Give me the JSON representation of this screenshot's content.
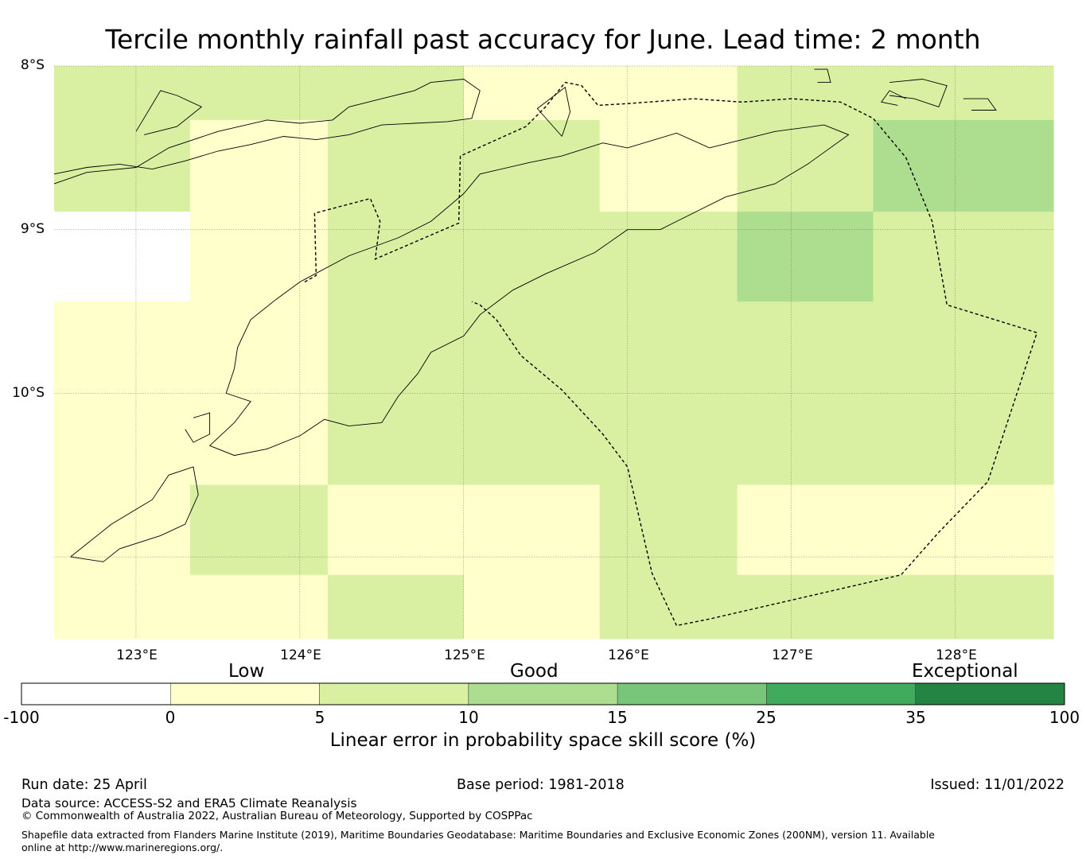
{
  "title": "Tercile monthly rainfall past accuracy for June. Lead time: 2 month",
  "map": {
    "lat_labels": [
      "8°S",
      "9°S",
      "10°S"
    ],
    "lon_labels": [
      "123°E",
      "124°E",
      "125°E",
      "126°E",
      "127°E",
      "128°E"
    ],
    "lat_range": [
      -11.5,
      -8.0
    ],
    "lon_range": [
      122.5,
      128.6
    ],
    "gridlines": true,
    "grid_cells": [
      {
        "lon": [
          122.5,
          123.33
        ],
        "lat": [
          -8.33,
          -8.0
        ],
        "value": 7.5
      },
      {
        "lon": [
          123.33,
          124.17
        ],
        "lat": [
          -8.33,
          -8.0
        ],
        "value": 7.5
      },
      {
        "lon": [
          124.17,
          125.0
        ],
        "lat": [
          -8.33,
          -8.0
        ],
        "value": 7.5
      },
      {
        "lon": [
          125.0,
          125.83
        ],
        "lat": [
          -8.33,
          -8.0
        ],
        "value": 2.5
      },
      {
        "lon": [
          125.83,
          126.67
        ],
        "lat": [
          -8.33,
          -8.0
        ],
        "value": 2.5
      },
      {
        "lon": [
          126.67,
          127.5
        ],
        "lat": [
          -8.33,
          -8.0
        ],
        "value": 7.5
      },
      {
        "lon": [
          127.5,
          128.6
        ],
        "lat": [
          -8.33,
          -8.0
        ],
        "value": 7.5
      },
      {
        "lon": [
          122.5,
          123.33
        ],
        "lat": [
          -8.89,
          -8.33
        ],
        "value": 7.5
      },
      {
        "lon": [
          123.33,
          124.17
        ],
        "lat": [
          -8.89,
          -8.33
        ],
        "value": 2.5
      },
      {
        "lon": [
          124.17,
          125.0
        ],
        "lat": [
          -8.89,
          -8.33
        ],
        "value": 7.5
      },
      {
        "lon": [
          125.0,
          125.83
        ],
        "lat": [
          -8.89,
          -8.33
        ],
        "value": 7.5
      },
      {
        "lon": [
          125.83,
          126.67
        ],
        "lat": [
          -8.89,
          -8.33
        ],
        "value": 2.5
      },
      {
        "lon": [
          126.67,
          127.5
        ],
        "lat": [
          -8.89,
          -8.33
        ],
        "value": 7.5
      },
      {
        "lon": [
          127.5,
          128.6
        ],
        "lat": [
          -8.89,
          -8.33
        ],
        "value": 12.5
      },
      {
        "lon": [
          122.5,
          123.33
        ],
        "lat": [
          -9.44,
          -8.89
        ],
        "value": -50
      },
      {
        "lon": [
          123.33,
          124.17
        ],
        "lat": [
          -9.44,
          -8.89
        ],
        "value": 2.5
      },
      {
        "lon": [
          124.17,
          125.0
        ],
        "lat": [
          -9.44,
          -8.89
        ],
        "value": 7.5
      },
      {
        "lon": [
          125.0,
          125.83
        ],
        "lat": [
          -9.44,
          -8.89
        ],
        "value": 7.5
      },
      {
        "lon": [
          125.83,
          126.67
        ],
        "lat": [
          -9.44,
          -8.89
        ],
        "value": 7.5
      },
      {
        "lon": [
          126.67,
          127.5
        ],
        "lat": [
          -9.44,
          -8.89
        ],
        "value": 12.5
      },
      {
        "lon": [
          127.5,
          128.6
        ],
        "lat": [
          -9.44,
          -8.89
        ],
        "value": 7.5
      },
      {
        "lon": [
          122.5,
          123.33
        ],
        "lat": [
          -10.0,
          -9.44
        ],
        "value": 2.5
      },
      {
        "lon": [
          123.33,
          124.17
        ],
        "lat": [
          -10.0,
          -9.44
        ],
        "value": 2.5
      },
      {
        "lon": [
          124.17,
          125.0
        ],
        "lat": [
          -10.0,
          -9.44
        ],
        "value": 7.5
      },
      {
        "lon": [
          125.0,
          125.83
        ],
        "lat": [
          -10.0,
          -9.44
        ],
        "value": 7.5
      },
      {
        "lon": [
          125.83,
          126.67
        ],
        "lat": [
          -10.0,
          -9.44
        ],
        "value": 7.5
      },
      {
        "lon": [
          126.67,
          127.5
        ],
        "lat": [
          -10.0,
          -9.44
        ],
        "value": 7.5
      },
      {
        "lon": [
          127.5,
          128.6
        ],
        "lat": [
          -10.0,
          -9.44
        ],
        "value": 7.5
      },
      {
        "lon": [
          122.5,
          123.33
        ],
        "lat": [
          -10.56,
          -10.0
        ],
        "value": 2.5
      },
      {
        "lon": [
          123.33,
          124.17
        ],
        "lat": [
          -10.56,
          -10.0
        ],
        "value": 2.5
      },
      {
        "lon": [
          124.17,
          125.0
        ],
        "lat": [
          -10.56,
          -10.0
        ],
        "value": 7.5
      },
      {
        "lon": [
          125.0,
          125.83
        ],
        "lat": [
          -10.56,
          -10.0
        ],
        "value": 7.5
      },
      {
        "lon": [
          125.83,
          126.67
        ],
        "lat": [
          -10.56,
          -10.0
        ],
        "value": 7.5
      },
      {
        "lon": [
          126.67,
          127.5
        ],
        "lat": [
          -10.56,
          -10.0
        ],
        "value": 7.5
      },
      {
        "lon": [
          127.5,
          128.6
        ],
        "lat": [
          -10.56,
          -10.0
        ],
        "value": 7.5
      },
      {
        "lon": [
          122.5,
          123.33
        ],
        "lat": [
          -11.11,
          -10.56
        ],
        "value": 2.5
      },
      {
        "lon": [
          123.33,
          124.17
        ],
        "lat": [
          -11.11,
          -10.56
        ],
        "value": 7.5
      },
      {
        "lon": [
          124.17,
          125.0
        ],
        "lat": [
          -11.11,
          -10.56
        ],
        "value": 2.5
      },
      {
        "lon": [
          125.0,
          125.83
        ],
        "lat": [
          -11.11,
          -10.56
        ],
        "value": 2.5
      },
      {
        "lon": [
          125.83,
          126.67
        ],
        "lat": [
          -11.11,
          -10.56
        ],
        "value": 7.5
      },
      {
        "lon": [
          126.67,
          127.5
        ],
        "lat": [
          -11.11,
          -10.56
        ],
        "value": 2.5
      },
      {
        "lon": [
          127.5,
          128.6
        ],
        "lat": [
          -11.11,
          -10.56
        ],
        "value": 2.5
      },
      {
        "lon": [
          122.5,
          123.33
        ],
        "lat": [
          -11.5,
          -11.11
        ],
        "value": 2.5
      },
      {
        "lon": [
          123.33,
          124.17
        ],
        "lat": [
          -11.5,
          -11.11
        ],
        "value": 2.5
      },
      {
        "lon": [
          124.17,
          125.0
        ],
        "lat": [
          -11.5,
          -11.11
        ],
        "value": 7.5
      },
      {
        "lon": [
          125.0,
          125.83
        ],
        "lat": [
          -11.5,
          -11.11
        ],
        "value": 2.5
      },
      {
        "lon": [
          125.83,
          126.67
        ],
        "lat": [
          -11.5,
          -11.11
        ],
        "value": 7.5
      },
      {
        "lon": [
          126.67,
          127.5
        ],
        "lat": [
          -11.5,
          -11.11
        ],
        "value": 7.5
      },
      {
        "lon": [
          127.5,
          128.6
        ],
        "lat": [
          -11.5,
          -11.11
        ],
        "value": 7.5
      }
    ],
    "eez_boundary": [
      [
        124.03,
        -9.32
      ],
      [
        124.1,
        -9.28
      ],
      [
        124.09,
        -8.9
      ],
      [
        124.43,
        -8.81
      ],
      [
        124.49,
        -8.95
      ],
      [
        124.46,
        -9.18
      ],
      [
        124.97,
        -8.96
      ],
      [
        124.98,
        -8.55
      ],
      [
        125.38,
        -8.37
      ],
      [
        125.5,
        -8.25
      ],
      [
        125.62,
        -8.1
      ],
      [
        125.72,
        -8.12
      ],
      [
        125.82,
        -8.24
      ],
      [
        126.0,
        -8.23
      ],
      [
        126.4,
        -8.2
      ],
      [
        126.7,
        -8.22
      ],
      [
        127.0,
        -8.2
      ],
      [
        127.3,
        -8.22
      ],
      [
        127.5,
        -8.32
      ],
      [
        127.7,
        -8.56
      ],
      [
        127.86,
        -8.95
      ],
      [
        127.95,
        -9.46
      ],
      [
        128.5,
        -9.63
      ],
      [
        128.2,
        -10.54
      ],
      [
        127.9,
        -10.85
      ],
      [
        127.67,
        -11.11
      ],
      [
        126.5,
        -11.38
      ],
      [
        126.3,
        -11.42
      ],
      [
        126.15,
        -11.1
      ],
      [
        126.0,
        -10.45
      ],
      [
        125.85,
        -10.25
      ],
      [
        125.6,
        -9.98
      ],
      [
        125.35,
        -9.77
      ],
      [
        125.2,
        -9.55
      ],
      [
        125.1,
        -9.46
      ],
      [
        125.05,
        -9.44
      ]
    ],
    "coastlines": [
      [
        [
          122.5,
          -8.72
        ],
        [
          122.7,
          -8.65
        ],
        [
          123.0,
          -8.62
        ],
        [
          123.2,
          -8.5
        ],
        [
          123.5,
          -8.4
        ],
        [
          123.8,
          -8.33
        ],
        [
          124.0,
          -8.35
        ],
        [
          124.2,
          -8.33
        ],
        [
          124.3,
          -8.25
        ],
        [
          124.5,
          -8.2
        ],
        [
          124.7,
          -8.15
        ],
        [
          124.8,
          -8.1
        ],
        [
          125.0,
          -8.08
        ],
        [
          125.1,
          -8.15
        ],
        [
          125.05,
          -8.32
        ],
        [
          124.9,
          -8.34
        ],
        [
          124.7,
          -8.35
        ],
        [
          124.5,
          -8.36
        ],
        [
          124.3,
          -8.42
        ],
        [
          124.1,
          -8.45
        ],
        [
          123.9,
          -8.43
        ],
        [
          123.7,
          -8.48
        ],
        [
          123.5,
          -8.52
        ],
        [
          123.3,
          -8.58
        ],
        [
          123.1,
          -8.63
        ],
        [
          122.9,
          -8.6
        ],
        [
          122.7,
          -8.62
        ],
        [
          122.5,
          -8.66
        ]
      ],
      [
        [
          123.0,
          -8.4
        ],
        [
          123.15,
          -8.15
        ],
        [
          123.25,
          -8.18
        ],
        [
          123.4,
          -8.25
        ],
        [
          123.25,
          -8.37
        ],
        [
          123.05,
          -8.42
        ]
      ],
      [
        [
          125.6,
          -8.43
        ],
        [
          125.45,
          -8.26
        ],
        [
          125.62,
          -8.13
        ],
        [
          125.65,
          -8.28
        ],
        [
          125.6,
          -8.43
        ]
      ],
      [
        [
          126.5,
          -8.5
        ],
        [
          126.9,
          -8.4
        ],
        [
          127.2,
          -8.36
        ],
        [
          127.35,
          -8.42
        ],
        [
          127.1,
          -8.6
        ],
        [
          126.9,
          -8.72
        ],
        [
          126.6,
          -8.8
        ],
        [
          126.3,
          -8.95
        ],
        [
          126.2,
          -9.0
        ],
        [
          126.0,
          -9.0
        ],
        [
          125.8,
          -9.14
        ],
        [
          125.5,
          -9.27
        ],
        [
          125.3,
          -9.37
        ],
        [
          125.1,
          -9.52
        ],
        [
          125.0,
          -9.65
        ],
        [
          124.8,
          -9.75
        ],
        [
          124.72,
          -9.88
        ],
        [
          124.6,
          -10.02
        ],
        [
          124.5,
          -10.18
        ],
        [
          124.3,
          -10.2
        ],
        [
          124.15,
          -10.16
        ],
        [
          124.0,
          -10.26
        ],
        [
          123.8,
          -10.34
        ],
        [
          123.6,
          -10.38
        ],
        [
          123.45,
          -10.32
        ],
        [
          123.6,
          -10.18
        ],
        [
          123.7,
          -10.05
        ],
        [
          123.55,
          -10.0
        ],
        [
          123.6,
          -9.85
        ],
        [
          123.62,
          -9.72
        ],
        [
          123.7,
          -9.55
        ],
        [
          123.85,
          -9.43
        ],
        [
          124.0,
          -9.32
        ],
        [
          124.3,
          -9.16
        ],
        [
          124.6,
          -9.05
        ],
        [
          124.8,
          -8.95
        ],
        [
          125.0,
          -8.78
        ],
        [
          125.1,
          -8.66
        ],
        [
          125.4,
          -8.59
        ],
        [
          125.6,
          -8.55
        ],
        [
          125.85,
          -8.47
        ],
        [
          126.0,
          -8.5
        ],
        [
          126.3,
          -8.41
        ],
        [
          126.5,
          -8.5
        ]
      ],
      [
        [
          122.6,
          -11.0
        ],
        [
          122.85,
          -10.8
        ],
        [
          123.1,
          -10.65
        ],
        [
          123.2,
          -10.5
        ],
        [
          123.35,
          -10.45
        ],
        [
          123.38,
          -10.62
        ],
        [
          123.3,
          -10.8
        ],
        [
          123.15,
          -10.87
        ],
        [
          122.9,
          -10.95
        ],
        [
          122.8,
          -11.03
        ],
        [
          122.6,
          -11.0
        ]
      ],
      [
        [
          123.35,
          -10.15
        ],
        [
          123.45,
          -10.12
        ],
        [
          123.45,
          -10.25
        ],
        [
          123.35,
          -10.3
        ],
        [
          123.3,
          -10.22
        ]
      ],
      [
        [
          127.6,
          -8.1
        ],
        [
          127.8,
          -8.08
        ],
        [
          127.95,
          -8.12
        ],
        [
          127.9,
          -8.25
        ],
        [
          127.75,
          -8.2
        ],
        [
          127.6,
          -8.18
        ]
      ],
      [
        [
          127.7,
          -8.2
        ],
        [
          127.6,
          -8.15
        ],
        [
          127.55,
          -8.22
        ],
        [
          127.65,
          -8.24
        ]
      ],
      [
        [
          128.05,
          -8.2
        ],
        [
          128.2,
          -8.2
        ],
        [
          128.25,
          -8.27
        ],
        [
          128.1,
          -8.27
        ]
      ],
      [
        [
          127.14,
          -8.02
        ],
        [
          127.22,
          -8.02
        ],
        [
          127.24,
          -8.1
        ],
        [
          127.16,
          -8.1
        ]
      ]
    ]
  },
  "colorbar": {
    "category_labels": [
      "Low",
      "Good",
      "Exceptional"
    ],
    "ticks": [
      "-100",
      "0",
      "5",
      "10",
      "15",
      "25",
      "35",
      "100"
    ],
    "bounds": [
      -100,
      0,
      5,
      10,
      15,
      25,
      35,
      100
    ],
    "colors": [
      "#ffffff",
      "#ffffcc",
      "#d9f0a3",
      "#addd8e",
      "#78c679",
      "#41ab5d",
      "#238443"
    ],
    "label": "Linear error in probability space skill score (%)"
  },
  "footer": {
    "run_date": "Run date: 25 April",
    "base_period": "Base period: 1981-2018",
    "issued": "Issued: 11/01/2022",
    "data_source": "Data source: ACCESS-S2 and ERA5 Climate Reanalysis",
    "copyright": "© Commonwealth of Australia 2022, Australian Bureau of Meteorology, Supported by COSPPac",
    "shapefile_note": "Shapefile data extracted from Flanders Marine Institute (2019), Maritime Boundaries Geodatabase: Maritime Boundaries and Exclusive Economic Zones (200NM), version 11. Available online at http://www.marineregions.org/."
  }
}
